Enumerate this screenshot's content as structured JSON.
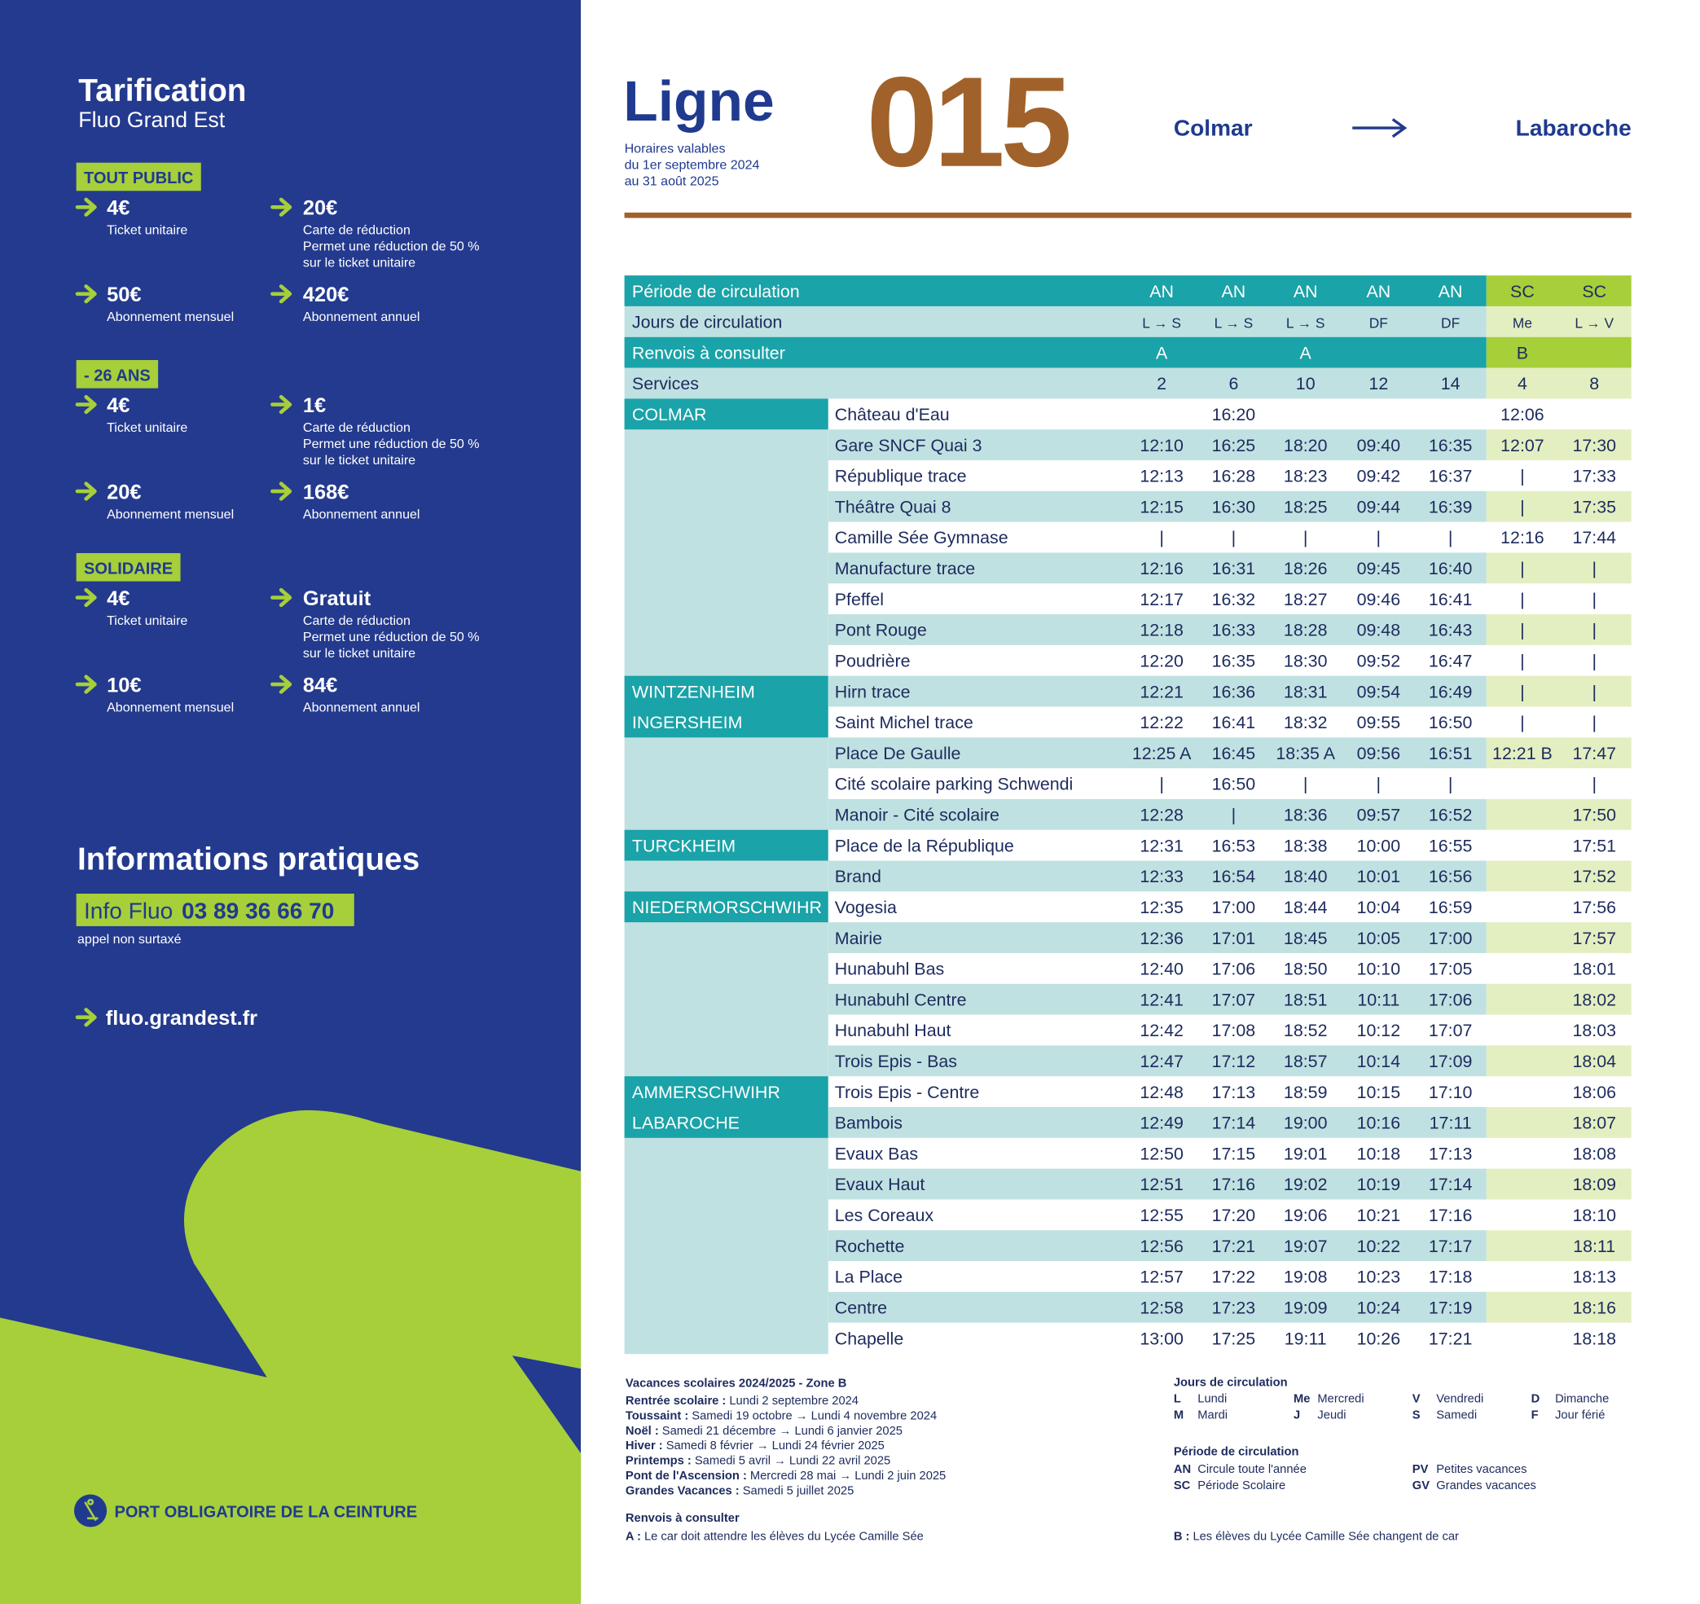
{
  "left": {
    "title": "Tarification",
    "subtitle": "Fluo Grand Est",
    "groups": [
      {
        "label": "TOUT PUBLIC",
        "items": [
          {
            "price": "4€",
            "desc": [
              "Ticket unitaire"
            ]
          },
          {
            "price": "20€",
            "desc": [
              "Carte de réduction",
              "Permet une réduction de 50 %",
              "sur le ticket unitaire"
            ]
          },
          {
            "price": "50€",
            "desc": [
              "Abonnement mensuel"
            ]
          },
          {
            "price": "420€",
            "desc": [
              "Abonnement annuel"
            ]
          }
        ]
      },
      {
        "label": "- 26 ANS",
        "items": [
          {
            "price": "4€",
            "desc": [
              "Ticket unitaire"
            ]
          },
          {
            "price": "1€",
            "desc": [
              "Carte de réduction",
              "Permet une réduction de 50 %",
              "sur le ticket unitaire"
            ]
          },
          {
            "price": "20€",
            "desc": [
              "Abonnement mensuel"
            ]
          },
          {
            "price": "168€",
            "desc": [
              "Abonnement annuel"
            ]
          }
        ]
      },
      {
        "label": "SOLIDAIRE",
        "items": [
          {
            "price": "4€",
            "desc": [
              "Ticket unitaire"
            ]
          },
          {
            "price": "Gratuit",
            "desc": [
              "Carte de réduction",
              "Permet une réduction de 50 %",
              "sur le ticket unitaire"
            ]
          },
          {
            "price": "10€",
            "desc": [
              "Abonnement mensuel"
            ]
          },
          {
            "price": "84€",
            "desc": [
              "Abonnement annuel"
            ]
          }
        ]
      }
    ],
    "info": {
      "title": "Informations pratiques",
      "label": "Info Fluo",
      "phone": "03 89 36 66 70",
      "note": "appel non surtaxé",
      "website": "fluo.grandest.fr"
    },
    "footer": "PORT OBLIGATOIRE DE LA CEINTURE"
  },
  "header": {
    "title": "Ligne",
    "validity": [
      "Horaires valables",
      "du 1er septembre 2024",
      "au 31 août 2025"
    ],
    "line": "015",
    "from": "Colmar",
    "to": "Labaroche"
  },
  "table": {
    "labels": [
      "Période de circulation",
      "Jours de circulation",
      "Renvois à consulter",
      "Services"
    ],
    "periods": [
      "AN",
      "AN",
      "AN",
      "AN",
      "AN",
      "SC",
      "SC"
    ],
    "days": [
      "L → S",
      "L → S",
      "L → S",
      "DF",
      "DF",
      "Me",
      "L → V"
    ],
    "renvois": [
      "A",
      null,
      "A",
      null,
      null,
      "B",
      null
    ],
    "services": [
      2,
      6,
      10,
      12,
      14,
      4,
      8
    ],
    "rows": [
      {
        "commune": "COLMAR",
        "stop": "Château d'Eau",
        "times": [
          null,
          "16:20",
          null,
          null,
          null,
          "12:06",
          null
        ]
      },
      {
        "commune": null,
        "stop": "Gare SNCF Quai 3",
        "times": [
          "12:10",
          "16:25",
          "18:20",
          "09:40",
          "16:35",
          "12:07",
          "17:30"
        ]
      },
      {
        "commune": null,
        "stop": "République trace",
        "times": [
          "12:13",
          "16:28",
          "18:23",
          "09:42",
          "16:37",
          "|",
          "17:33"
        ]
      },
      {
        "commune": null,
        "stop": "Théâtre Quai 8",
        "times": [
          "12:15",
          "16:30",
          "18:25",
          "09:44",
          "16:39",
          "|",
          "17:35"
        ]
      },
      {
        "commune": null,
        "stop": "Camille Sée Gymnase",
        "times": [
          "|",
          "|",
          "|",
          "|",
          "|",
          "12:16",
          "17:44"
        ]
      },
      {
        "commune": null,
        "stop": "Manufacture trace",
        "times": [
          "12:16",
          "16:31",
          "18:26",
          "09:45",
          "16:40",
          "|",
          "|"
        ]
      },
      {
        "commune": null,
        "stop": "Pfeffel",
        "times": [
          "12:17",
          "16:32",
          "18:27",
          "09:46",
          "16:41",
          "|",
          "|"
        ]
      },
      {
        "commune": null,
        "stop": "Pont Rouge",
        "times": [
          "12:18",
          "16:33",
          "18:28",
          "09:48",
          "16:43",
          "|",
          "|"
        ]
      },
      {
        "commune": null,
        "stop": "Poudrière",
        "times": [
          "12:20",
          "16:35",
          "18:30",
          "09:52",
          "16:47",
          "|",
          "|"
        ]
      },
      {
        "commune": "WINTZENHEIM",
        "stop": "Hirn trace",
        "times": [
          "12:21",
          "16:36",
          "18:31",
          "09:54",
          "16:49",
          "|",
          "|"
        ]
      },
      {
        "commune": "INGERSHEIM",
        "stop": "Saint Michel trace",
        "times": [
          "12:22",
          "16:41",
          "18:32",
          "09:55",
          "16:50",
          "|",
          "|"
        ]
      },
      {
        "commune": null,
        "stop": "Place De Gaulle",
        "times": [
          "12:25 A",
          "16:45",
          "18:35 A",
          "09:56",
          "16:51",
          "12:21 B",
          "17:47"
        ]
      },
      {
        "commune": null,
        "stop": "Cité scolaire parking Schwendi",
        "times": [
          "|",
          "16:50",
          "|",
          "|",
          "|",
          null,
          "|"
        ]
      },
      {
        "commune": null,
        "stop": "Manoir - Cité scolaire",
        "times": [
          "12:28",
          "|",
          "18:36",
          "09:57",
          "16:52",
          null,
          "17:50"
        ]
      },
      {
        "commune": "TURCKHEIM",
        "stop": "Place de la République",
        "times": [
          "12:31",
          "16:53",
          "18:38",
          "10:00",
          "16:55",
          null,
          "17:51"
        ]
      },
      {
        "commune": null,
        "stop": "Brand",
        "times": [
          "12:33",
          "16:54",
          "18:40",
          "10:01",
          "16:56",
          null,
          "17:52"
        ]
      },
      {
        "commune": "NIEDERMORSCHWIHR",
        "stop": "Vogesia",
        "times": [
          "12:35",
          "17:00",
          "18:44",
          "10:04",
          "16:59",
          null,
          "17:56"
        ]
      },
      {
        "commune": null,
        "stop": "Mairie",
        "times": [
          "12:36",
          "17:01",
          "18:45",
          "10:05",
          "17:00",
          null,
          "17:57"
        ]
      },
      {
        "commune": null,
        "stop": "Hunabuhl Bas",
        "times": [
          "12:40",
          "17:06",
          "18:50",
          "10:10",
          "17:05",
          null,
          "18:01"
        ]
      },
      {
        "commune": null,
        "stop": "Hunabuhl Centre",
        "times": [
          "12:41",
          "17:07",
          "18:51",
          "10:11",
          "17:06",
          null,
          "18:02"
        ]
      },
      {
        "commune": null,
        "stop": "Hunabuhl Haut",
        "times": [
          "12:42",
          "17:08",
          "18:52",
          "10:12",
          "17:07",
          null,
          "18:03"
        ]
      },
      {
        "commune": null,
        "stop": "Trois Epis - Bas",
        "times": [
          "12:47",
          "17:12",
          "18:57",
          "10:14",
          "17:09",
          null,
          "18:04"
        ]
      },
      {
        "commune": "AMMERSCHWIHR",
        "stop": "Trois Epis - Centre",
        "times": [
          "12:48",
          "17:13",
          "18:59",
          "10:15",
          "17:10",
          null,
          "18:06"
        ]
      },
      {
        "commune": "LABAROCHE",
        "stop": "Bambois",
        "times": [
          "12:49",
          "17:14",
          "19:00",
          "10:16",
          "17:11",
          null,
          "18:07"
        ]
      },
      {
        "commune": null,
        "stop": "Evaux Bas",
        "times": [
          "12:50",
          "17:15",
          "19:01",
          "10:18",
          "17:13",
          null,
          "18:08"
        ]
      },
      {
        "commune": null,
        "stop": "Evaux Haut",
        "times": [
          "12:51",
          "17:16",
          "19:02",
          "10:19",
          "17:14",
          null,
          "18:09"
        ]
      },
      {
        "commune": null,
        "stop": "Les Coreaux",
        "times": [
          "12:55",
          "17:20",
          "19:06",
          "10:21",
          "17:16",
          null,
          "18:10"
        ]
      },
      {
        "commune": null,
        "stop": "Rochette",
        "times": [
          "12:56",
          "17:21",
          "19:07",
          "10:22",
          "17:17",
          null,
          "18:11"
        ]
      },
      {
        "commune": null,
        "stop": "La Place",
        "times": [
          "12:57",
          "17:22",
          "19:08",
          "10:23",
          "17:18",
          null,
          "18:13"
        ]
      },
      {
        "commune": null,
        "stop": "Centre",
        "times": [
          "12:58",
          "17:23",
          "19:09",
          "10:24",
          "17:19",
          null,
          "18:16"
        ]
      },
      {
        "commune": null,
        "stop": "Chapelle",
        "times": [
          "13:00",
          "17:25",
          "19:11",
          "10:26",
          "17:21",
          null,
          "18:18"
        ]
      }
    ]
  },
  "notes": {
    "vacances": {
      "title": "Vacances scolaires 2024/2025 - Zone B",
      "items": [
        {
          "label": "Rentrée scolaire :",
          "text": "Lundi 2 septembre 2024"
        },
        {
          "label": "Toussaint :",
          "text": "Samedi 19 octobre → Lundi 4 novembre 2024"
        },
        {
          "label": "Noël :",
          "text": "Samedi 21 décembre → Lundi 6 janvier 2025"
        },
        {
          "label": "Hiver :",
          "text": "Samedi 8 février → Lundi 24 février 2025"
        },
        {
          "label": "Printemps :",
          "text": "Samedi 5 avril → Lundi 22 avril 2025"
        },
        {
          "label": "Pont de l'Ascension :",
          "text": "Mercredi 28 mai → Lundi 2 juin 2025"
        },
        {
          "label": "Grandes Vacances :",
          "text": "Samedi 5 juillet 2025"
        }
      ]
    },
    "renvois": {
      "title": "Renvois à consulter",
      "items": [
        {
          "label": "A :",
          "text": "Le car doit attendre les élèves du Lycée Camille Sée"
        },
        {
          "label": "B :",
          "text": "Les élèves du Lycée Camille Sée changent de car"
        }
      ]
    },
    "jours": {
      "title": "Jours de circulation",
      "items": [
        {
          "code": "L",
          "name": "Lundi"
        },
        {
          "code": "Me",
          "name": "Mercredi"
        },
        {
          "code": "V",
          "name": "Vendredi"
        },
        {
          "code": "D",
          "name": "Dimanche"
        },
        {
          "code": "M",
          "name": "Mardi"
        },
        {
          "code": "J",
          "name": "Jeudi"
        },
        {
          "code": "S",
          "name": "Samedi"
        },
        {
          "code": "F",
          "name": "Jour férié"
        }
      ]
    },
    "periode": {
      "title": "Période de circulation",
      "items": [
        {
          "code": "AN",
          "name": "Circule toute l'année"
        },
        {
          "code": "PV",
          "name": "Petites vacances"
        },
        {
          "code": "SC",
          "name": "Période Scolaire"
        },
        {
          "code": "GV",
          "name": "Grandes vacances"
        }
      ]
    }
  }
}
